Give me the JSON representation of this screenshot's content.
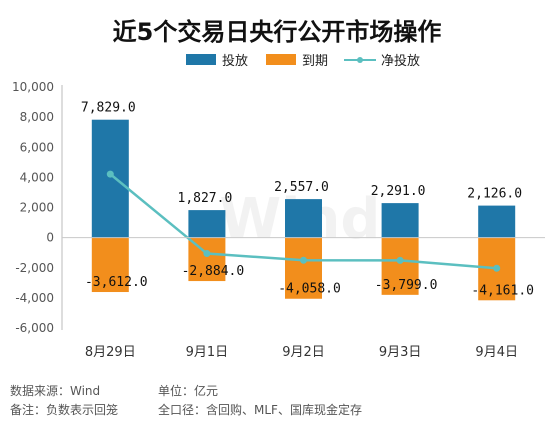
{
  "chart_data": {
    "type": "bar",
    "title": "近5个交易日央行公开市场操作",
    "categories": [
      "8月29日",
      "9月1日",
      "9月2日",
      "9月3日",
      "9月4日"
    ],
    "series": [
      {
        "name": "投放",
        "kind": "bar",
        "values": [
          7829.0,
          1827.0,
          2557.0,
          2291.0,
          2126.0
        ],
        "labels": [
          "7,829.0",
          "1,827.0",
          "2,557.0",
          "2,291.0",
          "2,126.0"
        ],
        "color": "#1F77A8"
      },
      {
        "name": "到期",
        "kind": "bar",
        "values": [
          -3612.0,
          -2884.0,
          -4058.0,
          -3799.0,
          -4161.0
        ],
        "labels": [
          "-3,612.0",
          "-2,884.0",
          "-4,058.0",
          "-3,799.0",
          "-4,161.0"
        ],
        "color": "#F28E1C"
      },
      {
        "name": "净投放",
        "kind": "line",
        "values": [
          4217.0,
          -1057.0,
          -1501.0,
          -1508.0,
          -2035.0
        ],
        "color": "#5BBFC0"
      }
    ],
    "ylim": [
      -6000,
      10000
    ],
    "yticks": [
      10000,
      8000,
      6000,
      4000,
      2000,
      0,
      -2000,
      -4000,
      -6000
    ],
    "ytick_labels": [
      "10,000",
      "8,000",
      "6,000",
      "4,000",
      "2,000",
      "0",
      "-2,000",
      "-4,000",
      "-6,000"
    ],
    "legend_position": "top-center",
    "grid": false
  },
  "watermark": "Wind",
  "footer": {
    "source": "数据来源：Wind",
    "unit": "单位：亿元",
    "note": "备注：负数表示回笼",
    "scope": "全口径：含回购、MLF、国库现金定存"
  }
}
